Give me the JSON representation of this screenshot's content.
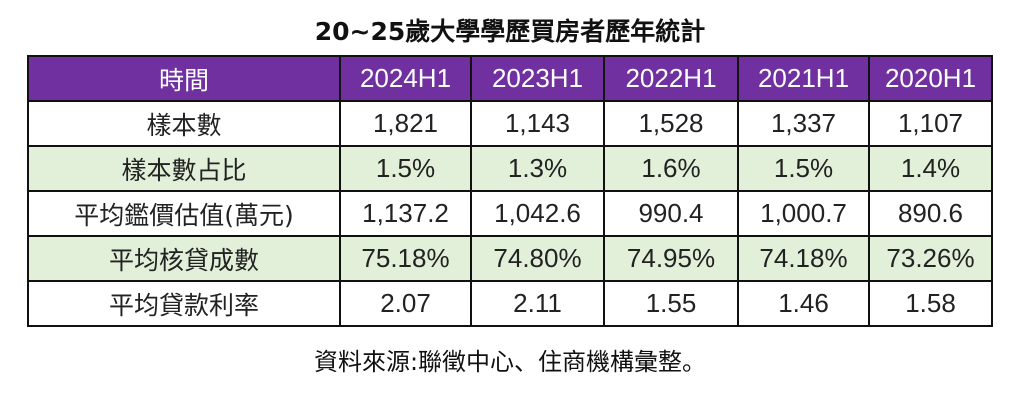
{
  "title": "20~25歲大學學歷買房者歷年統計",
  "table": {
    "header": [
      "時間",
      "2024H1",
      "2023H1",
      "2022H1",
      "2021H1",
      "2020H1"
    ],
    "rows": [
      {
        "label": "樣本數",
        "values": [
          "1,821",
          "1,143",
          "1,528",
          "1,337",
          "1,107"
        ],
        "shaded": false
      },
      {
        "label": "樣本數占比",
        "values": [
          "1.5%",
          "1.3%",
          "1.6%",
          "1.5%",
          "1.4%"
        ],
        "shaded": true
      },
      {
        "label": "平均鑑價估值(萬元)",
        "values": [
          "1,137.2",
          "1,042.6",
          "990.4",
          "1,000.7",
          "890.6"
        ],
        "shaded": false
      },
      {
        "label": "平均核貸成數",
        "values": [
          "75.18%",
          "74.80%",
          "74.95%",
          "74.18%",
          "73.26%"
        ],
        "shaded": true
      },
      {
        "label": "平均貸款利率",
        "values": [
          "2.07",
          "2.11",
          "1.55",
          "1.46",
          "1.58"
        ],
        "shaded": false
      }
    ]
  },
  "source": "資料來源:聯徵中心、住商機構彙整。",
  "colors": {
    "header_bg": "#7030a0",
    "shaded_row_bg": "#e2efd9"
  }
}
